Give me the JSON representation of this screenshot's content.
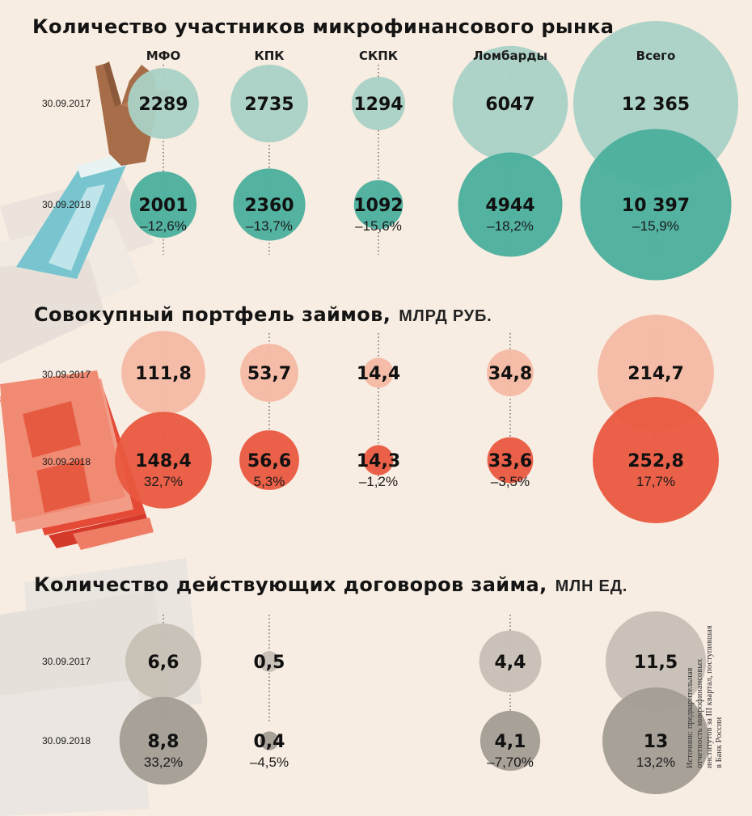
{
  "chart_data": [
    {
      "type": "bubble",
      "title": "Количество участников микрофинансового рынка",
      "unit": "",
      "categories": [
        "МФО",
        "КПК",
        "СКПК",
        "Ломбарды",
        "Всего"
      ],
      "series": [
        {
          "name": "30.09.2017",
          "values": [
            2289,
            2735,
            1294,
            6047,
            12365
          ],
          "labels": [
            "2289",
            "2735",
            "1294",
            "6047",
            "12 365"
          ],
          "changes": [
            "",
            "",
            "",
            "",
            ""
          ],
          "color": "#a9d2c6"
        },
        {
          "name": "30.09.2018",
          "values": [
            2001,
            2360,
            1092,
            4944,
            10397
          ],
          "labels": [
            "2001",
            "2360",
            "1092",
            "4944",
            "10 397"
          ],
          "changes": [
            "–12,6%",
            "–13,7%",
            "–15,6%",
            "–18,2%",
            "–15,9%"
          ],
          "color": "#4aaf9c"
        }
      ]
    },
    {
      "type": "bubble",
      "title": "Совокупный портфель займов,",
      "unit": "МЛРД РУБ.",
      "categories": [
        "МФО",
        "КПК",
        "СКПК",
        "Ломбарды",
        "Всего"
      ],
      "series": [
        {
          "name": "30.09.2017",
          "values": [
            111.8,
            53.7,
            14.4,
            34.8,
            214.7
          ],
          "labels": [
            "111,8",
            "53,7",
            "14,4",
            "34,8",
            "214,7"
          ],
          "changes": [
            "",
            "",
            "",
            "",
            ""
          ],
          "color": "#f4b9a3"
        },
        {
          "name": "30.09.2018",
          "values": [
            148.4,
            56.6,
            14.3,
            33.6,
            252.8
          ],
          "labels": [
            "148,4",
            "56,6",
            "14,3",
            "33,6",
            "252,8"
          ],
          "changes": [
            "32,7%",
            "5,3%",
            "–1,2%",
            "–3,5%",
            "17,7%"
          ],
          "color": "#e9583f"
        }
      ]
    },
    {
      "type": "bubble",
      "title": "Количество действующих договоров займа,",
      "unit": "МЛН ЕД.",
      "categories": [
        "МФО",
        "КПК",
        "СКПК",
        "Ломбарды",
        "Всего"
      ],
      "series": [
        {
          "name": "30.09.2017",
          "values": [
            6.6,
            0.5,
            null,
            4.4,
            11.5
          ],
          "labels": [
            "6,6",
            "0,5",
            "",
            "4,4",
            "11,5"
          ],
          "changes": [
            "",
            "",
            "",
            "",
            ""
          ],
          "color": "#c7c0b5"
        },
        {
          "name": "30.09.2018",
          "values": [
            8.8,
            0.4,
            null,
            4.1,
            13
          ],
          "labels": [
            "8,8",
            "0,4",
            "",
            "4,1",
            "13"
          ],
          "changes": [
            "33,2%",
            "–4,5%",
            "",
            "–7,70%",
            "13,2%"
          ],
          "color": "#a39d94"
        }
      ]
    }
  ],
  "source_note": [
    "Источник: предварительная",
    "отчетность микрофинансовых",
    "институтов за III квартал, поступившая",
    "в Банк России"
  ]
}
